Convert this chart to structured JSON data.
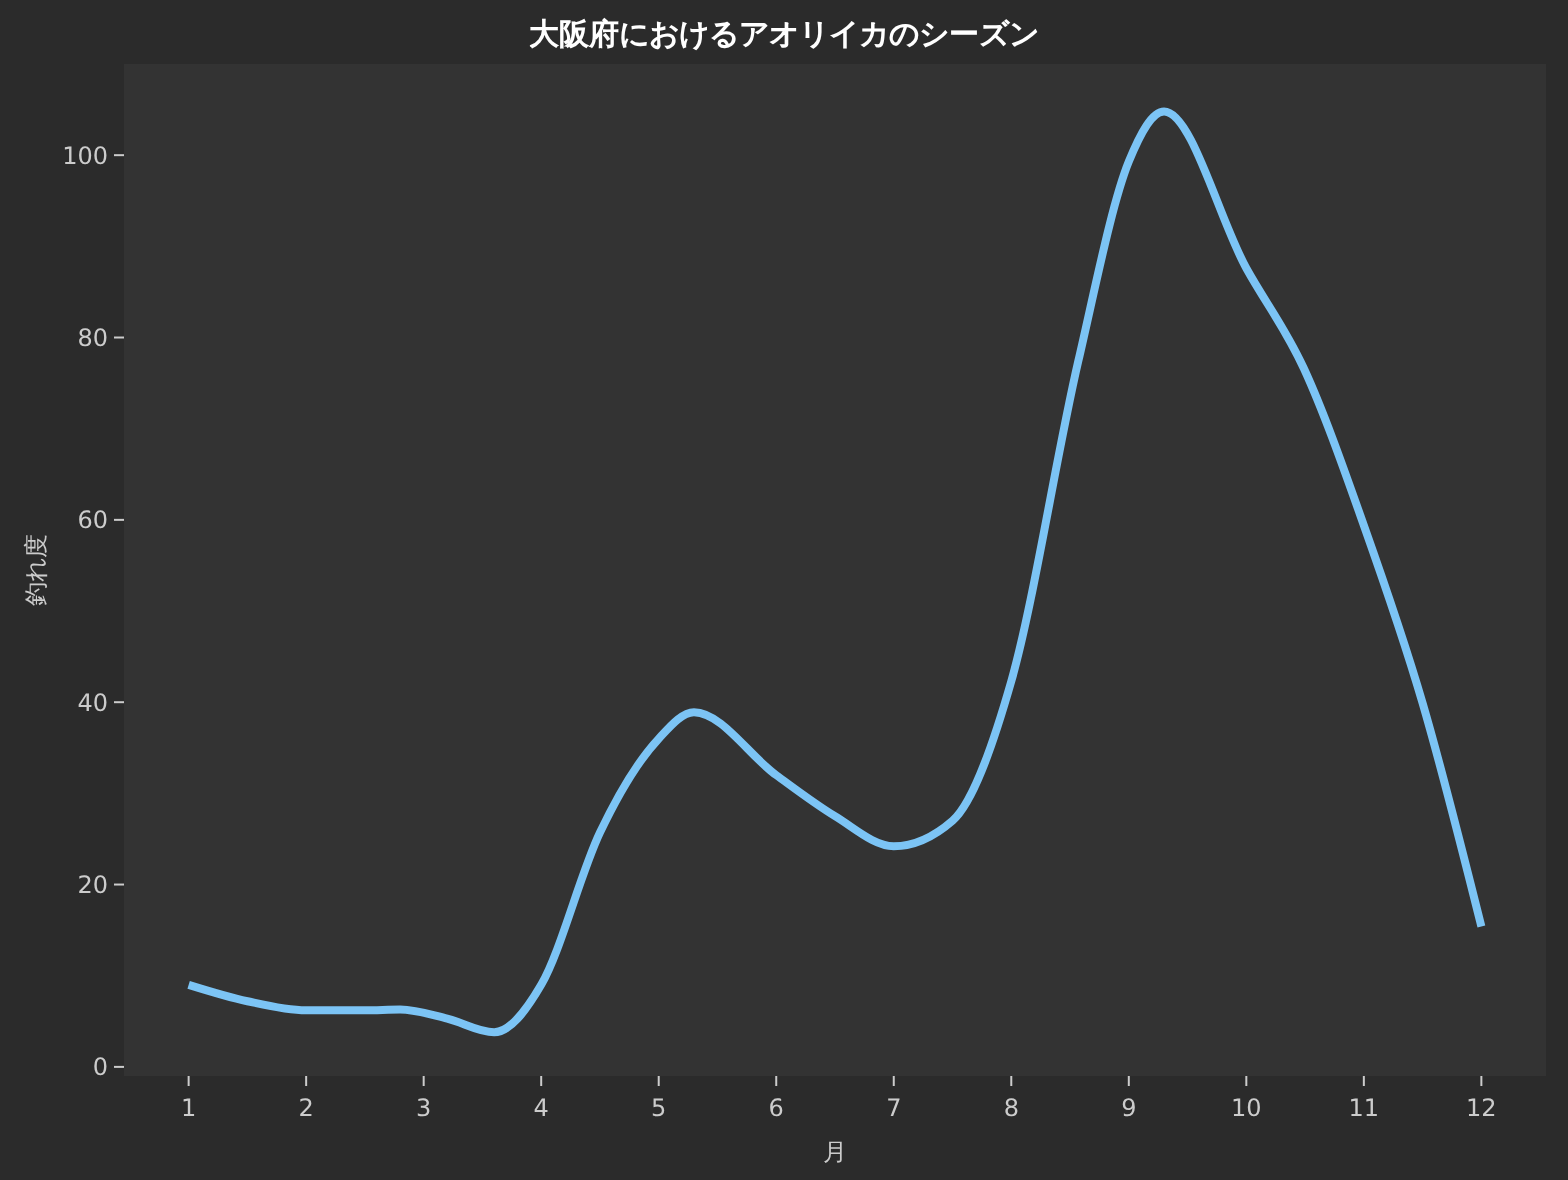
{
  "chart_data": {
    "type": "line",
    "title": "大阪府におけるアオリイカのシーズン",
    "xlabel": "月",
    "ylabel": "釣れ度",
    "xlim": [
      0.45,
      12.55
    ],
    "ylim": [
      -1,
      110
    ],
    "xticks": [
      1,
      2,
      3,
      4,
      5,
      6,
      7,
      8,
      9,
      10,
      11,
      12
    ],
    "yticks": [
      0,
      20,
      40,
      60,
      80,
      100
    ],
    "grid": false,
    "marker": "none",
    "line_style": "solid",
    "series": [
      {
        "color": "#7cc4f5",
        "x": [
          1,
          1.5,
          2,
          2.5,
          2.8,
          3.2,
          3.6,
          4,
          4.5,
          5,
          5.3,
          6,
          6.5,
          7,
          7.5,
          8,
          8.57,
          9,
          9.3,
          10,
          10.49,
          11,
          11.5,
          12
        ],
        "values": [
          9,
          7.2,
          6.2,
          6.2,
          6.3,
          5.3,
          3.8,
          9,
          25.7,
          36,
          38.9,
          32,
          27.5,
          24.2,
          27,
          42.3,
          77.4,
          99.3,
          104.8,
          87.6,
          76.6,
          59.4,
          39.9,
          15.4
        ]
      }
    ]
  }
}
